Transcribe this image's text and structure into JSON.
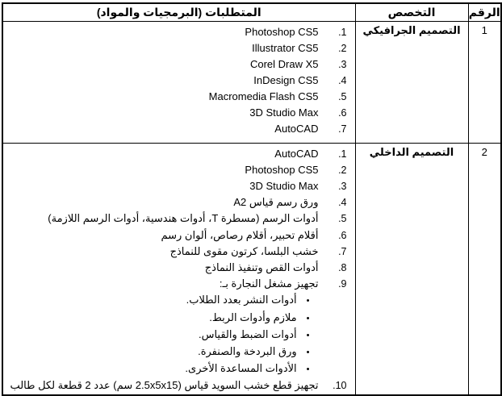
{
  "table": {
    "headers": {
      "number": "الرقم",
      "specialization": "التخصص",
      "requirements": "المتطلبات (البرمجيات والمواد)"
    },
    "rows": [
      {
        "number": "1",
        "specialization": "التصميم الجرافيكي",
        "items": [
          {
            "num": ".1",
            "text": "Photoshop CS5"
          },
          {
            "num": ".2",
            "text": "Illustrator CS5"
          },
          {
            "num": ".3",
            "text": "Corel Draw X5"
          },
          {
            "num": ".4",
            "text": "InDesign CS5"
          },
          {
            "num": ".5",
            "text": "Macromedia Flash CS5"
          },
          {
            "num": ".6",
            "text": "3D Studio Max"
          },
          {
            "num": ".7",
            "text": "AutoCAD"
          }
        ]
      },
      {
        "number": "2",
        "specialization": "التصميم الداخلي",
        "items": [
          {
            "num": ".1",
            "text": "AutoCAD"
          },
          {
            "num": ".2",
            "text": "Photoshop CS5"
          },
          {
            "num": ".3",
            "text": "3D Studio Max"
          },
          {
            "num": ".4",
            "text": "ورق رسم قياس A2"
          },
          {
            "num": ".5",
            "text": "أدوات الرسم (مسطرة T، أدوات هندسية، أدوات الرسم اللازمة)"
          },
          {
            "num": ".6",
            "text": "أقلام تحبير، أقلام رصاص، ألوان رسم"
          },
          {
            "num": ".7",
            "text": "خشب البلسا، كرتون مقوى للنماذج"
          },
          {
            "num": ".8",
            "text": "أدوات القص وتنفيذ النماذج"
          },
          {
            "num": ".9",
            "text": "تجهيز مشغل النجارة بـ:"
          }
        ],
        "bullets": [
          {
            "marker": "•",
            "text": "أدوات النشر بعدد الطلاب."
          },
          {
            "marker": "•",
            "text": "ملازم وأدوات الربط."
          },
          {
            "marker": "•",
            "text": "أدوات الضبط والقياس."
          },
          {
            "marker": "•",
            "text": "ورق البردخة والصنفرة."
          },
          {
            "marker": "•",
            "text": "الأدوات المساعدة الأخرى."
          }
        ],
        "final_item": {
          "num": ".10",
          "text": "تجهيز قطع خشب السويد قياس (2.5x5x15 سم) عدد 2 قطعة لكل طالب"
        }
      }
    ]
  }
}
